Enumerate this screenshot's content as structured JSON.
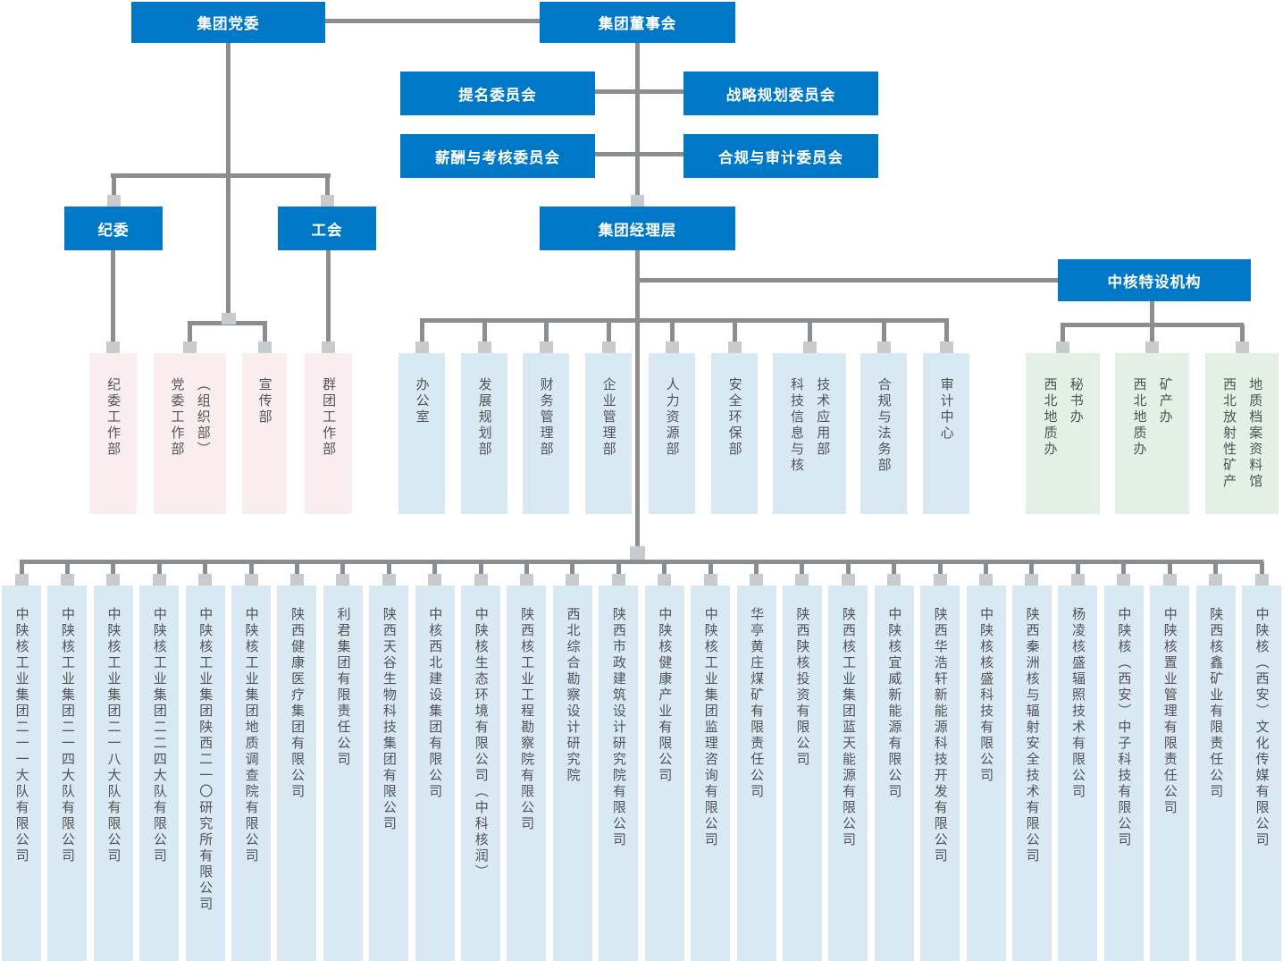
{
  "colors": {
    "primary_blue": "#0078c8",
    "connector_gray": "#8b8e91",
    "node_gray": "#c7cbce",
    "pink_bg": "#f9edf0",
    "light_blue_bg": "#d9e9f4",
    "green_bg": "#e4f0e6",
    "vertical_text": "#515356"
  },
  "top_nodes": {
    "party_committee": "集团党委",
    "board": "集团董事会",
    "nomination_committee": "提名委员会",
    "strategy_committee": "战略规划委员会",
    "compensation_committee": "薪酬与考核委员会",
    "compliance_audit_committee": "合规与审计委员会",
    "discipline_committee": "纪委",
    "labor_union": "工会",
    "management_team": "集团经理层",
    "special_agencies_header": "中核特设机构"
  },
  "party_departments": [
    "纪委工作部",
    "党委工作部\n（组织部）",
    "宣传部",
    "群团工作部"
  ],
  "management_departments": [
    "办公室",
    "发展规划部",
    "财务管理部",
    "企业管理部",
    "人力资源部",
    "安全环保部",
    "科技信息与核\n技术应用部",
    "合规与法务部",
    "审计中心"
  ],
  "special_agencies": [
    "西北地质办\n秘书办",
    "西北地质办\n矿产办",
    "西北放射性矿产\n地质档案资料馆"
  ],
  "subsidiaries": [
    "中陕核工业集团二一一大队有限公司",
    "中陕核工业集团二一四大队有限公司",
    "中陕核工业集团二一八大队有限公司",
    "中陕核工业集团二二四大队有限公司",
    "中陕核工业集团陕西二一〇研究所有限公司",
    "中陕核工业集团地质调查院有限公司",
    "陕西健康医疗集团有限公司",
    "利君集团有限责任公司",
    "陕西天谷生物科技集团有限公司",
    "中核西北建设集团有限公司",
    "中陕核生态环境有限公司（中科核润）",
    "陕西核工业工程勘察院有限公司",
    "西北综合勘察设计研究院",
    "陕西市政建筑设计研究院有限公司",
    "中陕核健康产业有限公司",
    "中陕核工业集团监理咨询有限公司",
    "华亭黄庄煤矿有限责任公司",
    "陕西陕核投资有限公司",
    "陕西核工业集团蓝天能源有限公司",
    "中陕核宜威新能源有限公司",
    "陕西华浩轩新能源科技开发有限公司",
    "中陕核核盛科技有限公司",
    "陕西秦洲核与辐射安全技术有限公司",
    "杨凌核盛辐照技术有限公司",
    "中陕核（西安）中子科技有限公司",
    "中陕核置业管理有限责任公司",
    "陕西核鑫矿业有限责任公司",
    "中陕核（西安）文化传媒有限公司"
  ]
}
